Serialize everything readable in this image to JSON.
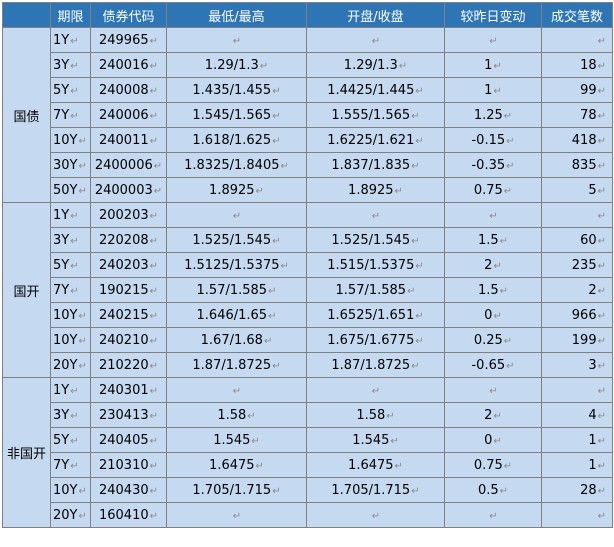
{
  "columns": [
    "期限",
    "债券代码",
    "最低/最高",
    "开盘/收盘",
    "较昨日变动",
    "成交笔数"
  ],
  "para_mark": "↵",
  "sections": [
    {
      "name": "国债",
      "rows": [
        {
          "term": "1Y",
          "code": "249965",
          "range": "",
          "open_close": "",
          "change": "",
          "trades": ""
        },
        {
          "term": "3Y",
          "code": "240016",
          "range": "1.29/1.3",
          "open_close": "1.29/1.3",
          "change": "1",
          "trades": "18"
        },
        {
          "term": "5Y",
          "code": "240008",
          "range": "1.435/1.455",
          "open_close": "1.4425/1.445",
          "change": "1",
          "trades": "99"
        },
        {
          "term": "7Y",
          "code": "240006",
          "range": "1.545/1.565",
          "open_close": "1.555/1.565",
          "change": "1.25",
          "trades": "78"
        },
        {
          "term": "10Y",
          "code": "240011",
          "range": "1.618/1.625",
          "open_close": "1.6225/1.621",
          "change": "-0.15",
          "trades": "418"
        },
        {
          "term": "30Y",
          "code": "2400006",
          "range": "1.8325/1.8405",
          "open_close": "1.837/1.835",
          "change": "-0.35",
          "trades": "835"
        },
        {
          "term": "50Y",
          "code": "2400003",
          "range": "1.8925",
          "open_close": "1.8925",
          "change": "0.75",
          "trades": "5"
        }
      ]
    },
    {
      "name": "国开",
      "rows": [
        {
          "term": "1Y",
          "code": "200203",
          "range": "",
          "open_close": "",
          "change": "",
          "trades": ""
        },
        {
          "term": "3Y",
          "code": "220208",
          "range": "1.525/1.545",
          "open_close": "1.525/1.545",
          "change": "1.5",
          "trades": "60"
        },
        {
          "term": "5Y",
          "code": "240203",
          "range": "1.5125/1.5375",
          "open_close": "1.515/1.5375",
          "change": "2",
          "trades": "235"
        },
        {
          "term": "7Y",
          "code": "190215",
          "range": "1.57/1.585",
          "open_close": "1.57/1.585",
          "change": "1.5",
          "trades": "2"
        },
        {
          "term": "10Y",
          "code": "240215",
          "range": "1.646/1.65",
          "open_close": "1.6525/1.651",
          "change": "0",
          "trades": "966"
        },
        {
          "term": "10Y",
          "code": "240210",
          "range": "1.67/1.68",
          "open_close": "1.675/1.6775",
          "change": "0.25",
          "trades": "199"
        },
        {
          "term": "20Y",
          "code": "210220",
          "range": "1.87/1.8725",
          "open_close": "1.87/1.8725",
          "change": "-0.65",
          "trades": "3"
        }
      ]
    },
    {
      "name": "非国开",
      "rows": [
        {
          "term": "1Y",
          "code": "240301",
          "range": "",
          "open_close": "",
          "change": "",
          "trades": ""
        },
        {
          "term": "3Y",
          "code": "230413",
          "range": "1.58",
          "open_close": "1.58",
          "change": "2",
          "trades": "4"
        },
        {
          "term": "5Y",
          "code": "240405",
          "range": "1.545",
          "open_close": "1.545",
          "change": "0",
          "trades": "1"
        },
        {
          "term": "7Y",
          "code": "210310",
          "range": "1.6475",
          "open_close": "1.6475",
          "change": "0.75",
          "trades": "1"
        },
        {
          "term": "10Y",
          "code": "240430",
          "range": "1.705/1.715",
          "open_close": "1.705/1.715",
          "change": "0.5",
          "trades": "28"
        },
        {
          "term": "20Y",
          "code": "160410",
          "range": "",
          "open_close": "",
          "change": "",
          "trades": ""
        }
      ]
    }
  ],
  "colors": {
    "header_bg": "#2e75b6",
    "header_text": "#ffffff",
    "cell_bg": "#c5d9f1",
    "border": "#808080"
  }
}
